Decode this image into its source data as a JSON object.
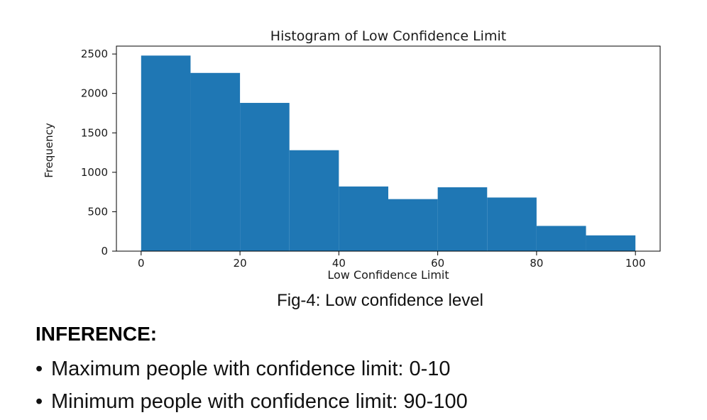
{
  "chart_data": {
    "type": "bar",
    "title": "Histogram of Low Confidence Limit",
    "xlabel": "Low Confidence Limit",
    "ylabel": "Frequency",
    "bin_edges": [
      0,
      10,
      20,
      30,
      40,
      50,
      60,
      70,
      80,
      90,
      100
    ],
    "values": [
      2480,
      2260,
      1880,
      1280,
      820,
      660,
      810,
      680,
      320,
      200
    ],
    "xlim": [
      -5,
      105
    ],
    "ylim": [
      0,
      2600
    ],
    "xticks": [
      0,
      20,
      40,
      60,
      80,
      100
    ],
    "yticks": [
      0,
      500,
      1000,
      1500,
      2000,
      2500
    ],
    "grid": false,
    "bar_color": "#1f77b4"
  },
  "caption": "Fig-4: Low confidence level",
  "inference": {
    "heading": "INFERENCE:",
    "bullet_glyph": "•",
    "bullets": [
      "Maximum people with confidence limit: 0-10",
      "Minimum people with confidence limit: 90-100"
    ]
  }
}
